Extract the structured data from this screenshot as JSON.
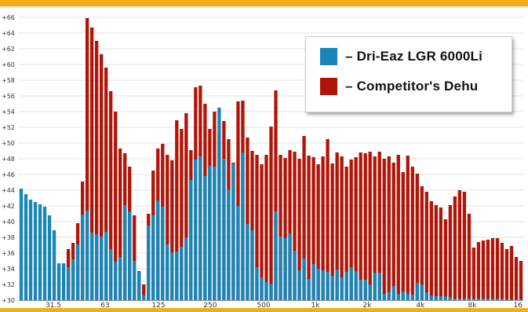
{
  "colors": {
    "series1": "#1a86b8",
    "series2": "#b01508",
    "frame": "#f2ad18",
    "grid": "#e3e3e3"
  },
  "chart_data": {
    "type": "bar",
    "grid": true,
    "legend_position": "top-right",
    "ylim": [
      30,
      67
    ],
    "y_ticks": [
      "+30",
      "+32",
      "+34",
      "+36",
      "+38",
      "+40",
      "+42",
      "+44",
      "+46",
      "+48",
      "+50",
      "+52",
      "+54",
      "+56",
      "+58",
      "+60",
      "+62",
      "+64",
      "+66"
    ],
    "x_tick_labels": [
      "31.5",
      "63",
      "125",
      "250",
      "500",
      "1k",
      "2k",
      "4k",
      "8k",
      "16"
    ],
    "series": [
      {
        "name": "– Dri-Eaz LGR 6000Li",
        "values": [
          44.2,
          43.5,
          42.8,
          42.5,
          42.2,
          41.9,
          40.8,
          38.9,
          34.7,
          34.7,
          34.2,
          35.2,
          37.1,
          40.9,
          41.4,
          38.6,
          38.4,
          38.1,
          38.7,
          36.5,
          34.9,
          35.5,
          42.1,
          41.3,
          35.0,
          33.6,
          30.6,
          39.5,
          40.8,
          42.7,
          41.9,
          37.1,
          36.1,
          36.2,
          36.8,
          38.0,
          45.3,
          47.9,
          48.3,
          45.8,
          47.1,
          47.0,
          54.5,
          48.0,
          44.1,
          47.4,
          42.0,
          48.8,
          39.7,
          38.9,
          34.2,
          32.9,
          32.3,
          32.1,
          41.3,
          38.1,
          37.9,
          38.5,
          36.3,
          33.8,
          35.3,
          32.7,
          34.6,
          34.0,
          33.8,
          33.6,
          33.1,
          33.9,
          32.9,
          33.6,
          34.2,
          33.7,
          32.6,
          32.6,
          32.0,
          33.5,
          33.5,
          30.8,
          31.0,
          31.8,
          30.8,
          31.1,
          30.8,
          30.7,
          32.2,
          32.0,
          31.0,
          30.6,
          30.5,
          30.5,
          30.5,
          30.4,
          30.2,
          30.2,
          30.2,
          30.2,
          30.2,
          30.2,
          30.2,
          30.2,
          30.2,
          30.2,
          30.2,
          30.1,
          30.1,
          30.1,
          30.1
        ]
      },
      {
        "name": "– Competitor's Dehu",
        "values": [
          30,
          30,
          30,
          30,
          30,
          30,
          30,
          30,
          30,
          30,
          36.5,
          37.3,
          39.8,
          45.1,
          65.9,
          64.7,
          63.0,
          61.3,
          59.6,
          56.6,
          54.0,
          49.3,
          48.7,
          47.0,
          40.8,
          33.7,
          32.0,
          41.0,
          46.5,
          49.3,
          49.9,
          48.5,
          47.8,
          52.9,
          51.8,
          53.8,
          49.1,
          57.1,
          57.3,
          55.0,
          51.8,
          54.0,
          51.5,
          52.8,
          50.5,
          47.5,
          55.3,
          55.4,
          50.7,
          49.0,
          48.5,
          47.3,
          48.5,
          52.1,
          56.7,
          48.5,
          48.1,
          49.1,
          48.9,
          48.0,
          50.9,
          48.4,
          48.2,
          47.3,
          48.3,
          50.5,
          47.4,
          48.8,
          48.3,
          47.0,
          47.9,
          48.2,
          48.8,
          48.7,
          48.9,
          48.3,
          48.9,
          48.0,
          48.3,
          47.5,
          48.5,
          46.3,
          48.4,
          47.0,
          46.1,
          44.5,
          43.8,
          42.6,
          42.1,
          41.8,
          40.3,
          42.1,
          43.2,
          44.0,
          43.8,
          41.0,
          36.7,
          37.4,
          37.6,
          37.7,
          37.9,
          37.9,
          37.3,
          36.5,
          36.9,
          35.5,
          35.0
        ]
      }
    ]
  }
}
